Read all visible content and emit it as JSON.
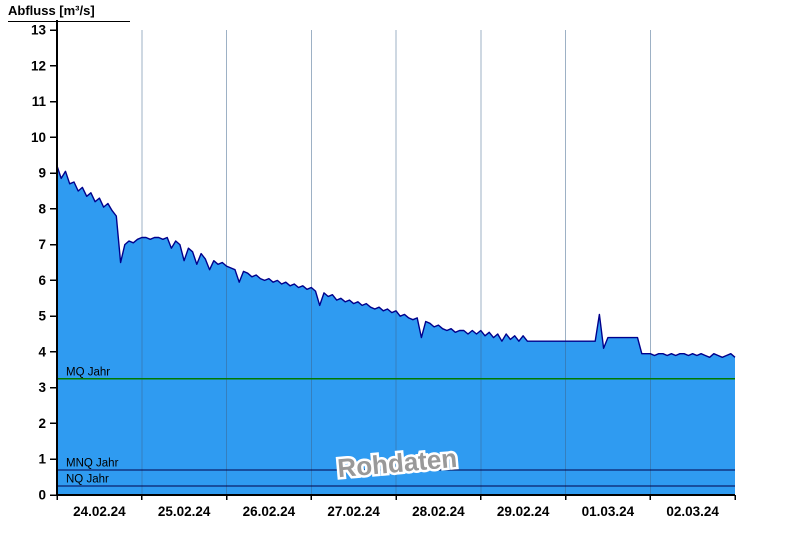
{
  "title": "Abfluss [m³/s]",
  "chart_data": {
    "type": "area",
    "title": "Abfluss [m³/s]",
    "ylabel": "Abfluss [m³/s]",
    "xlabel": "",
    "ylim": [
      0,
      13
    ],
    "y_ticks": [
      0,
      1,
      2,
      3,
      4,
      5,
      6,
      7,
      8,
      9,
      10,
      11,
      12,
      13
    ],
    "x_categories": [
      "24.02.24",
      "25.02.24",
      "26.02.24",
      "27.02.24",
      "28.02.24",
      "29.02.24",
      "01.03.24",
      "02.03.24"
    ],
    "x_days": 8,
    "sample_step_days": 0.05,
    "series": [
      {
        "name": "Abfluss Rohdaten",
        "values": [
          9.2,
          8.85,
          9.05,
          8.7,
          8.75,
          8.5,
          8.6,
          8.35,
          8.45,
          8.2,
          8.3,
          8.05,
          8.15,
          7.95,
          7.8,
          6.5,
          7.0,
          7.1,
          7.05,
          7.15,
          7.2,
          7.2,
          7.15,
          7.2,
          7.2,
          7.15,
          7.2,
          6.9,
          7.1,
          7.0,
          6.55,
          6.9,
          6.8,
          6.45,
          6.75,
          6.6,
          6.3,
          6.55,
          6.45,
          6.5,
          6.4,
          6.35,
          6.3,
          5.95,
          6.25,
          6.2,
          6.1,
          6.15,
          6.05,
          6.0,
          6.05,
          5.95,
          6.0,
          5.9,
          5.95,
          5.85,
          5.9,
          5.8,
          5.85,
          5.75,
          5.8,
          5.7,
          5.3,
          5.65,
          5.55,
          5.6,
          5.45,
          5.5,
          5.4,
          5.45,
          5.35,
          5.4,
          5.3,
          5.35,
          5.25,
          5.2,
          5.25,
          5.15,
          5.2,
          5.1,
          5.15,
          5.0,
          5.05,
          4.95,
          4.9,
          4.95,
          4.4,
          4.85,
          4.8,
          4.7,
          4.75,
          4.65,
          4.6,
          4.65,
          4.55,
          4.6,
          4.6,
          4.5,
          4.6,
          4.5,
          4.6,
          4.45,
          4.55,
          4.4,
          4.5,
          4.3,
          4.5,
          4.35,
          4.45,
          4.3,
          4.45,
          4.3,
          4.3,
          4.3,
          4.3,
          4.3,
          4.3,
          4.3,
          4.3,
          4.3,
          4.3,
          4.3,
          4.3,
          4.3,
          4.3,
          4.3,
          4.3,
          4.3,
          5.05,
          4.1,
          4.4,
          4.4,
          4.4,
          4.4,
          4.4,
          4.4,
          4.4,
          4.4,
          3.95,
          3.95,
          3.95,
          3.9,
          3.95,
          3.95,
          3.9,
          3.95,
          3.9,
          3.95,
          3.95,
          3.9,
          3.95,
          3.9,
          3.95,
          3.9,
          3.85,
          3.95,
          3.9,
          3.85,
          3.9,
          3.95,
          3.85
        ]
      }
    ],
    "reference_lines": [
      {
        "label": "MQ Jahr",
        "value": 3.25,
        "color": "#007a00"
      },
      {
        "label": "MNQ Jahr",
        "value": 0.7,
        "color": "#00004a"
      },
      {
        "label": "NQ Jahr",
        "value": 0.25,
        "color": "#00004a"
      }
    ],
    "watermark": "Rohdaten",
    "legend_position": "none",
    "grid": "vertical-only",
    "colors": {
      "fill": "#2f9bf1",
      "line": "#00008b",
      "grid": "rgba(60,100,140,0.5)",
      "axis": "#000000",
      "watermark": "#999999"
    }
  }
}
